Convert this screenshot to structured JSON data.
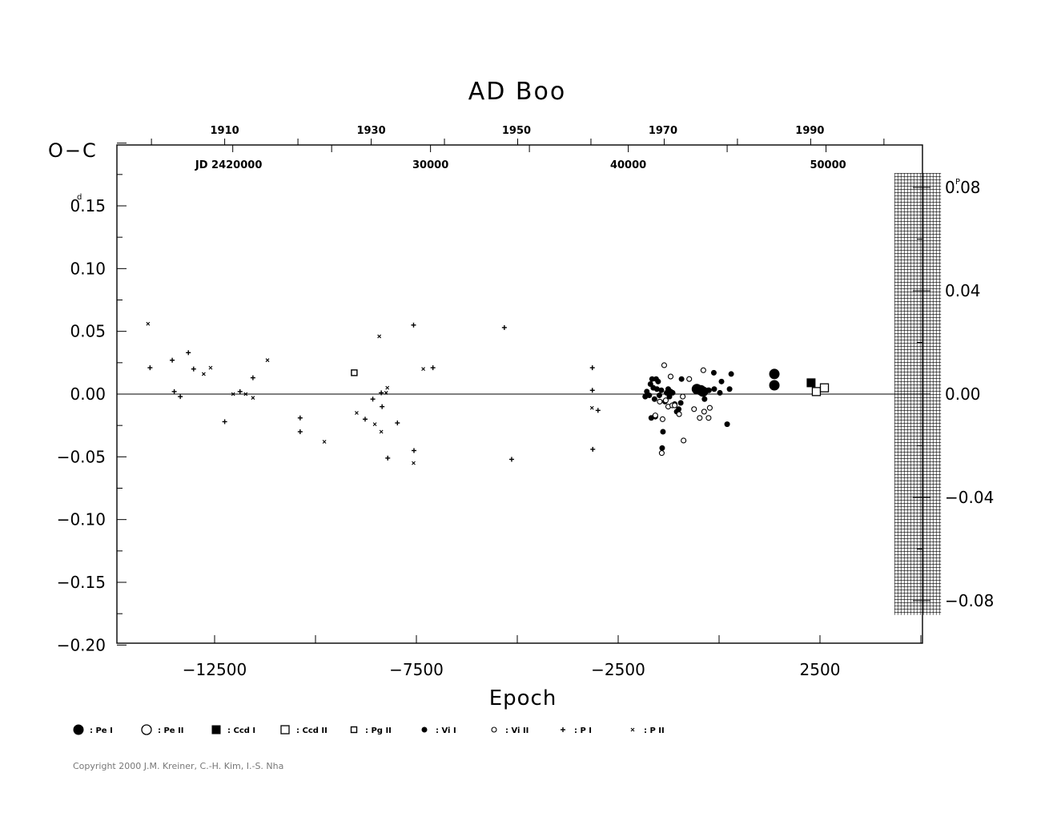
{
  "chart_data": {
    "type": "scatter",
    "title": "AD Boo",
    "xlabel": "Epoch",
    "ylabel": "O−C",
    "y_unit_mark": "d",
    "right_unit_mark": "P",
    "xlim": [
      -15000,
      5600
    ],
    "ylim": [
      -0.2,
      0.2
    ],
    "grid": false,
    "x_ticks": [
      {
        "value": -12500,
        "label": "−12500"
      },
      {
        "value": -7500,
        "label": "−7500"
      },
      {
        "value": -2500,
        "label": "−2500"
      },
      {
        "value": 2500,
        "label": "2500"
      }
    ],
    "y_ticks": [
      {
        "value": 0.15,
        "label": "0.15"
      },
      {
        "value": 0.1,
        "label": "0.10"
      },
      {
        "value": 0.05,
        "label": "0.05"
      },
      {
        "value": 0.0,
        "label": "0.00"
      },
      {
        "value": -0.05,
        "label": "−0.05"
      },
      {
        "value": -0.1,
        "label": "−0.10"
      },
      {
        "value": -0.15,
        "label": "−0.15"
      },
      {
        "value": -0.2,
        "label": "−0.20"
      }
    ],
    "y2_ticks": [
      {
        "value": 0.08,
        "label": "0.08"
      },
      {
        "value": 0.04,
        "label": "0.04"
      },
      {
        "value": 0.0,
        "label": "0.00"
      },
      {
        "value": -0.04,
        "label": "−0.04"
      },
      {
        "value": -0.08,
        "label": "−0.08"
      }
    ],
    "top_year_ticks": [
      {
        "value": -12250,
        "label": "1910"
      },
      {
        "value": -8620,
        "label": "1930"
      },
      {
        "value": -5020,
        "label": "1950"
      },
      {
        "value": -1390,
        "label": "1970"
      },
      {
        "value": 2250,
        "label": "1990"
      }
    ],
    "top_jd_labels": [
      {
        "value": -12150,
        "label": "JD  2420000"
      },
      {
        "value": -7150,
        "label": "30000"
      },
      {
        "value": -2250,
        "label": "40000"
      },
      {
        "value": 2700,
        "label": "50000"
      }
    ],
    "hatched_x_range": [
      4350,
      5500
    ],
    "hatched_y_range": [
      -0.176,
      0.176
    ],
    "series": [
      {
        "name": ": Pe I",
        "marker": "filled-circle-large",
        "points": [
          [
            -550,
            0.004
          ],
          [
            -450,
            0.003
          ],
          [
            -400,
            0.002
          ],
          [
            1370,
            0.016
          ],
          [
            1370,
            0.007
          ]
        ]
      },
      {
        "name": ": Pe II",
        "marker": "open-circle-large",
        "points": []
      },
      {
        "name": ": Ccd I",
        "marker": "filled-square",
        "points": [
          [
            2280,
            0.009
          ]
        ]
      },
      {
        "name": ": Ccd II",
        "marker": "open-square",
        "points": [
          [
            2410,
            0.002
          ],
          [
            2610,
            0.005
          ]
        ]
      },
      {
        "name": ": Pg II",
        "marker": "open-square-small",
        "points": [
          [
            -9040,
            0.017
          ]
        ]
      },
      {
        "name": ": Vi I",
        "marker": "filled-circle-small",
        "points": [
          [
            -1830,
            -0.002
          ],
          [
            -1790,
            0.002
          ],
          [
            -1730,
            -0.001
          ],
          [
            -1700,
            0.008
          ],
          [
            -1660,
            0.012
          ],
          [
            -1630,
            0.005
          ],
          [
            -1600,
            -0.004
          ],
          [
            -1560,
            0.012
          ],
          [
            -1540,
            0.004
          ],
          [
            -1510,
            0.01
          ],
          [
            -1480,
            -0.001
          ],
          [
            -1430,
            0.003
          ],
          [
            -1410,
            -0.043
          ],
          [
            -1390,
            -0.03
          ],
          [
            -1340,
            -0.006
          ],
          [
            -1300,
            0.001
          ],
          [
            -1260,
            0.004
          ],
          [
            -1230,
            -0.002
          ],
          [
            -1200,
            0.002
          ],
          [
            -1150,
            0.001
          ],
          [
            -1100,
            -0.008
          ],
          [
            -1050,
            -0.014
          ],
          [
            -1000,
            -0.012
          ],
          [
            -950,
            -0.007
          ],
          [
            -930,
            0.012
          ],
          [
            -1680,
            -0.019
          ],
          [
            -1580,
            -0.018
          ],
          [
            -500,
            0.003
          ],
          [
            -430,
            0.001
          ],
          [
            -360,
            -0.004
          ],
          [
            -270,
            0.003
          ],
          [
            -120,
            0.004
          ],
          [
            20,
            0.001
          ],
          [
            60,
            0.01
          ],
          [
            260,
            0.004
          ],
          [
            300,
            0.016
          ],
          [
            -250,
            0.003
          ],
          [
            -130,
            0.017
          ],
          [
            200,
            -0.024
          ]
        ]
      },
      {
        "name": ": Vi II",
        "marker": "open-circle-small",
        "points": [
          [
            -1580,
            -0.017
          ],
          [
            -1470,
            -0.006
          ],
          [
            -1420,
            -0.047
          ],
          [
            -1400,
            -0.02
          ],
          [
            -1360,
            0.023
          ],
          [
            -1320,
            -0.005
          ],
          [
            -1260,
            -0.01
          ],
          [
            -1200,
            0.014
          ],
          [
            -1160,
            -0.009
          ],
          [
            -1100,
            -0.009
          ],
          [
            -990,
            -0.016
          ],
          [
            -900,
            -0.002
          ],
          [
            -880,
            -0.037
          ],
          [
            -740,
            0.012
          ],
          [
            -620,
            -0.012
          ],
          [
            -480,
            -0.019
          ],
          [
            -390,
            0.019
          ],
          [
            -370,
            -0.014
          ],
          [
            -260,
            -0.019
          ],
          [
            -230,
            -0.011
          ]
        ]
      },
      {
        "name": ": P I",
        "marker": "plus",
        "points": [
          [
            -14100,
            0.021
          ],
          [
            -13550,
            0.027
          ],
          [
            -13500,
            0.002
          ],
          [
            -13350,
            -0.002
          ],
          [
            -13150,
            0.033
          ],
          [
            -13020,
            0.02
          ],
          [
            -12250,
            -0.022
          ],
          [
            -11870,
            0.002
          ],
          [
            -11550,
            0.013
          ],
          [
            -10380,
            -0.019
          ],
          [
            -10380,
            -0.03
          ],
          [
            -8770,
            -0.02
          ],
          [
            -8580,
            -0.004
          ],
          [
            -8370,
            0.001
          ],
          [
            -8350,
            -0.01
          ],
          [
            -8210,
            -0.051
          ],
          [
            -7970,
            -0.023
          ],
          [
            -7570,
            0.055
          ],
          [
            -7560,
            -0.045
          ],
          [
            -7090,
            0.021
          ],
          [
            -5320,
            0.053
          ],
          [
            -5140,
            -0.052
          ],
          [
            -3140,
            0.021
          ],
          [
            -3140,
            0.003
          ],
          [
            -3130,
            -0.044
          ],
          [
            -3000,
            -0.013
          ]
        ]
      },
      {
        "name": ": P II",
        "marker": "cross",
        "points": [
          [
            -14150,
            0.056
          ],
          [
            -12770,
            0.016
          ],
          [
            -12600,
            0.021
          ],
          [
            -12040,
            0.0
          ],
          [
            -11730,
            0.0
          ],
          [
            -11550,
            -0.003
          ],
          [
            -11190,
            0.027
          ],
          [
            -9780,
            -0.038
          ],
          [
            -8980,
            -0.015
          ],
          [
            -8530,
            -0.024
          ],
          [
            -8420,
            0.046
          ],
          [
            -8370,
            -0.03
          ],
          [
            -8220,
            0.005
          ],
          [
            -7570,
            -0.055
          ],
          [
            -7330,
            0.02
          ],
          [
            -3150,
            -0.011
          ],
          [
            -8250,
            0.001
          ]
        ]
      }
    ]
  },
  "copyright": "Copyright 2000 J.M. Kreiner, C.-H. Kim, I.-S. Nha"
}
